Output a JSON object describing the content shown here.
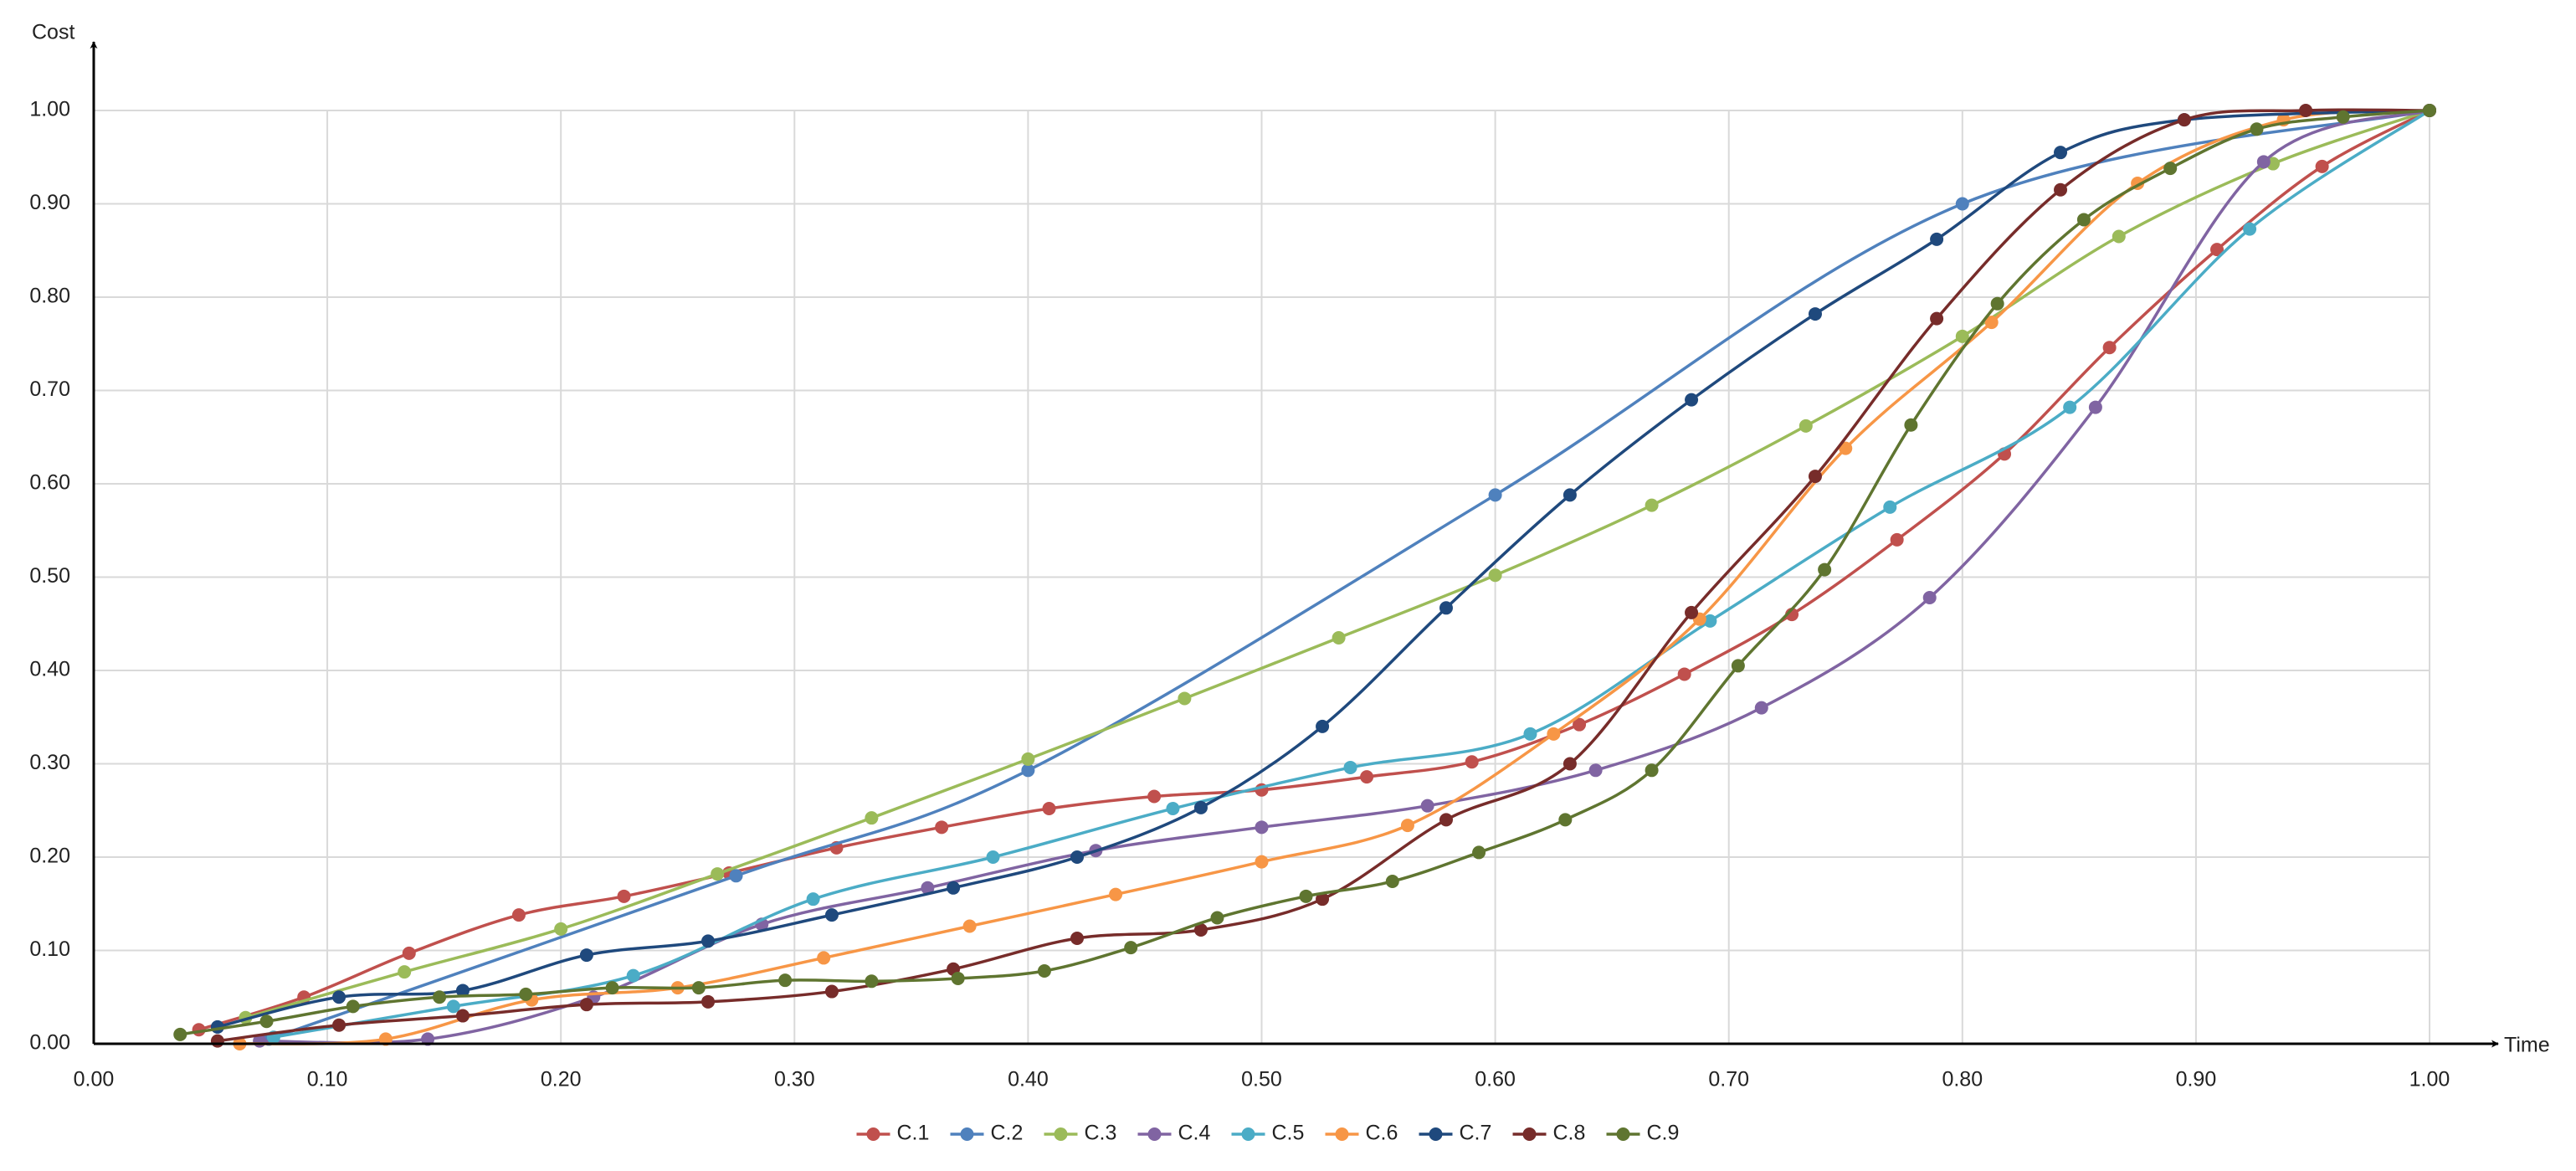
{
  "chart_data": {
    "type": "line",
    "x_label": "Time",
    "y_label": "Cost",
    "xlim": [
      0,
      1
    ],
    "ylim": [
      0,
      1
    ],
    "grid": true,
    "legend": "bottom",
    "xticks": [
      {
        "value": 0,
        "label": "0.00"
      },
      {
        "value": 0.1,
        "label": "0.10"
      },
      {
        "value": 0.2,
        "label": "0.20"
      },
      {
        "value": 0.3,
        "label": "0.30"
      },
      {
        "value": 0.4,
        "label": "0.40"
      },
      {
        "value": 0.5,
        "label": "0.50"
      },
      {
        "value": 0.6,
        "label": "0.60"
      },
      {
        "value": 0.7,
        "label": "0.70"
      },
      {
        "value": 0.8,
        "label": "0.80"
      },
      {
        "value": 0.9,
        "label": "0.90"
      },
      {
        "value": 1,
        "label": "1.00"
      }
    ],
    "yticks": [
      {
        "value": 0,
        "label": "0.00"
      },
      {
        "value": 0.1,
        "label": "0.10"
      },
      {
        "value": 0.2,
        "label": "0.20"
      },
      {
        "value": 0.3,
        "label": "0.30"
      },
      {
        "value": 0.4,
        "label": "0.40"
      },
      {
        "value": 0.5,
        "label": "0.50"
      },
      {
        "value": 0.6,
        "label": "0.60"
      },
      {
        "value": 0.7,
        "label": "0.70"
      },
      {
        "value": 0.8,
        "label": "0.80"
      },
      {
        "value": 0.9,
        "label": "0.90"
      },
      {
        "value": 1,
        "label": "1.00"
      }
    ],
    "series": [
      {
        "name": "C.1",
        "color": "#c0504d",
        "x": [
          0.045,
          0.09,
          0.135,
          0.182,
          0.227,
          0.272,
          0.318,
          0.363,
          0.409,
          0.454,
          0.5,
          0.545,
          0.59,
          0.636,
          0.681,
          0.727,
          0.772,
          0.818,
          0.863,
          0.909,
          0.954,
          1.0
        ],
        "values": [
          0.015,
          0.05,
          0.097,
          0.138,
          0.158,
          0.183,
          0.21,
          0.232,
          0.252,
          0.265,
          0.272,
          0.286,
          0.302,
          0.342,
          0.396,
          0.46,
          0.54,
          0.632,
          0.746,
          0.851,
          0.94,
          1.0
        ]
      },
      {
        "name": "C.2",
        "color": "#4f81bd",
        "x": [
          0.075,
          0.275,
          0.4,
          0.6,
          0.8,
          1.0
        ],
        "values": [
          0.005,
          0.18,
          0.293,
          0.588,
          0.9,
          1.0
        ]
      },
      {
        "name": "C.3",
        "color": "#9bbb59",
        "x": [
          0.065,
          0.133,
          0.2,
          0.267,
          0.333,
          0.4,
          0.467,
          0.533,
          0.6,
          0.667,
          0.733,
          0.8,
          0.867,
          0.933,
          1.0
        ],
        "values": [
          0.028,
          0.077,
          0.123,
          0.182,
          0.242,
          0.305,
          0.37,
          0.435,
          0.502,
          0.577,
          0.662,
          0.758,
          0.865,
          0.943,
          1.0
        ]
      },
      {
        "name": "C.4",
        "color": "#8064a2",
        "x": [
          0.071,
          0.143,
          0.214,
          0.286,
          0.357,
          0.429,
          0.5,
          0.571,
          0.643,
          0.714,
          0.786,
          0.857,
          0.929,
          1.0
        ],
        "values": [
          0.003,
          0.005,
          0.05,
          0.128,
          0.167,
          0.207,
          0.232,
          0.255,
          0.293,
          0.36,
          0.478,
          0.682,
          0.945,
          1.0
        ]
      },
      {
        "name": "C.5",
        "color": "#4bacc6",
        "x": [
          0.077,
          0.154,
          0.231,
          0.308,
          0.385,
          0.462,
          0.538,
          0.615,
          0.692,
          0.769,
          0.846,
          0.923,
          1.0
        ],
        "values": [
          0.007,
          0.04,
          0.073,
          0.155,
          0.2,
          0.252,
          0.296,
          0.332,
          0.453,
          0.575,
          0.682,
          0.873,
          1.0
        ]
      },
      {
        "name": "C.6",
        "color": "#f79646",
        "x": [
          0.0625,
          0.125,
          0.1875,
          0.25,
          0.3125,
          0.375,
          0.4375,
          0.5,
          0.5625,
          0.625,
          0.6875,
          0.75,
          0.8125,
          0.875,
          0.9375,
          1.0
        ],
        "values": [
          0.0,
          0.005,
          0.047,
          0.06,
          0.092,
          0.126,
          0.16,
          0.195,
          0.234,
          0.332,
          0.455,
          0.638,
          0.773,
          0.922,
          0.99,
          1.0
        ]
      },
      {
        "name": "C.7",
        "color": "#1f497d",
        "x": [
          0.053,
          0.105,
          0.158,
          0.211,
          0.263,
          0.316,
          0.368,
          0.421,
          0.474,
          0.526,
          0.579,
          0.632,
          0.684,
          0.737,
          0.789,
          0.842,
          0.895,
          1.0
        ],
        "values": [
          0.018,
          0.05,
          0.057,
          0.095,
          0.11,
          0.138,
          0.167,
          0.2,
          0.253,
          0.34,
          0.467,
          0.588,
          0.69,
          0.782,
          0.862,
          0.955,
          0.99,
          1.0
        ]
      },
      {
        "name": "C.8",
        "color": "#772c2a",
        "x": [
          0.053,
          0.105,
          0.158,
          0.211,
          0.263,
          0.316,
          0.368,
          0.421,
          0.474,
          0.526,
          0.579,
          0.632,
          0.684,
          0.737,
          0.789,
          0.842,
          0.895,
          0.947,
          1.0
        ],
        "values": [
          0.003,
          0.02,
          0.03,
          0.042,
          0.045,
          0.056,
          0.08,
          0.113,
          0.122,
          0.155,
          0.24,
          0.3,
          0.462,
          0.608,
          0.777,
          0.915,
          0.99,
          1.0,
          1.0
        ]
      },
      {
        "name": "C.9",
        "color": "#5f7530",
        "x": [
          0.037,
          0.074,
          0.111,
          0.148,
          0.185,
          0.222,
          0.259,
          0.296,
          0.333,
          0.37,
          0.407,
          0.444,
          0.481,
          0.519,
          0.556,
          0.593,
          0.63,
          0.667,
          0.704,
          0.741,
          0.778,
          0.815,
          0.852,
          0.889,
          0.926,
          0.963,
          1.0
        ],
        "values": [
          0.01,
          0.024,
          0.04,
          0.05,
          0.053,
          0.06,
          0.06,
          0.068,
          0.067,
          0.07,
          0.078,
          0.103,
          0.135,
          0.158,
          0.174,
          0.205,
          0.24,
          0.293,
          0.405,
          0.508,
          0.663,
          0.793,
          0.883,
          0.938,
          0.98,
          0.993,
          1.0
        ]
      }
    ]
  }
}
